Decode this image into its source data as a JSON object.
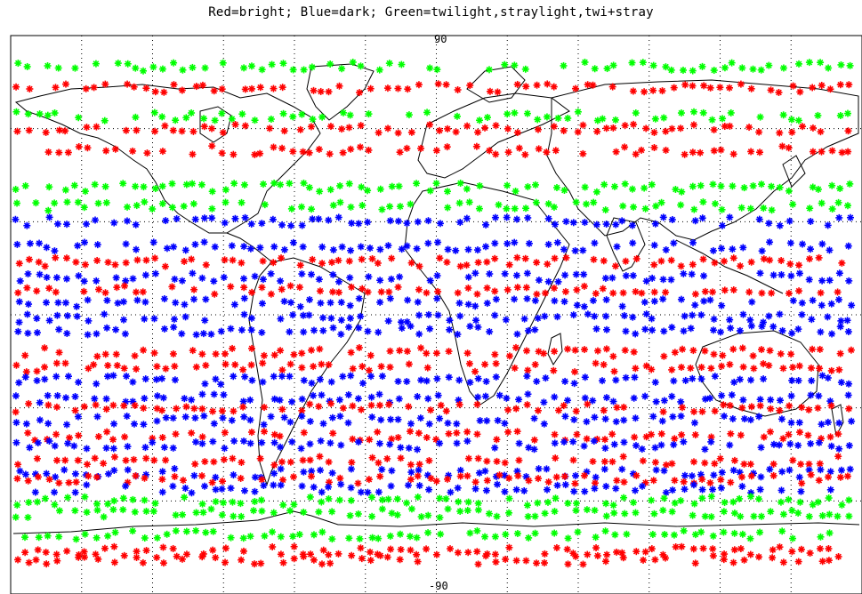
{
  "title": "Red=bright; Blue=dark; Green=twilight,straylight,twi+stray",
  "labels": {
    "top_tick": "90",
    "bottom_tick": "-90"
  },
  "colors": {
    "bright": "#ff0000",
    "dark": "#0000ff",
    "twilight": "#00ff00",
    "coast": "#000000",
    "grid": "#000000",
    "background": "#ffffff"
  },
  "map": {
    "projection": "cylindrical",
    "latitude_range": [
      -90,
      90
    ],
    "longitude_range": [
      -180,
      180
    ],
    "gridline_longitudes": [
      -150,
      -120,
      -90,
      -60,
      -30,
      0,
      30,
      60,
      90,
      120,
      150
    ],
    "gridline_latitudes": [
      60,
      30,
      0,
      -30,
      -60
    ],
    "gridline_style": "dotted"
  },
  "legend": {
    "bright": "Red",
    "dark": "Blue",
    "twilight_straylight": "Green"
  },
  "observation_bands": [
    {
      "category": "twilight",
      "lat": 80
    },
    {
      "category": "bright",
      "lat": 73
    },
    {
      "category": "twilight",
      "lat": 64
    },
    {
      "category": "bright",
      "lat": 60
    },
    {
      "category": "bright",
      "lat": 53
    },
    {
      "category": "twilight",
      "lat": 41
    },
    {
      "category": "twilight",
      "lat": 35
    },
    {
      "category": "dark",
      "lat": 30
    },
    {
      "category": "dark",
      "lat": 22
    },
    {
      "category": "bright",
      "lat": 17
    },
    {
      "category": "dark",
      "lat": 12
    },
    {
      "category": "bright",
      "lat": 8
    },
    {
      "category": "dark",
      "lat": 4
    },
    {
      "category": "dark",
      "lat": -1
    },
    {
      "category": "dark",
      "lat": -5
    },
    {
      "category": "bright",
      "lat": -12
    },
    {
      "category": "bright",
      "lat": -17
    },
    {
      "category": "dark",
      "lat": -21
    },
    {
      "category": "dark",
      "lat": -27
    },
    {
      "category": "bright",
      "lat": -30
    },
    {
      "category": "dark",
      "lat": -34
    },
    {
      "category": "bright",
      "lat": -39
    },
    {
      "category": "dark",
      "lat": -42
    },
    {
      "category": "bright",
      "lat": -47
    },
    {
      "category": "dark",
      "lat": -51
    },
    {
      "category": "bright",
      "lat": -53
    },
    {
      "category": "dark",
      "lat": -56
    },
    {
      "category": "twilight",
      "lat": -60
    },
    {
      "category": "twilight",
      "lat": -64
    },
    {
      "category": "twilight",
      "lat": -71
    },
    {
      "category": "bright",
      "lat": -76
    },
    {
      "category": "bright",
      "lat": -79
    }
  ]
}
